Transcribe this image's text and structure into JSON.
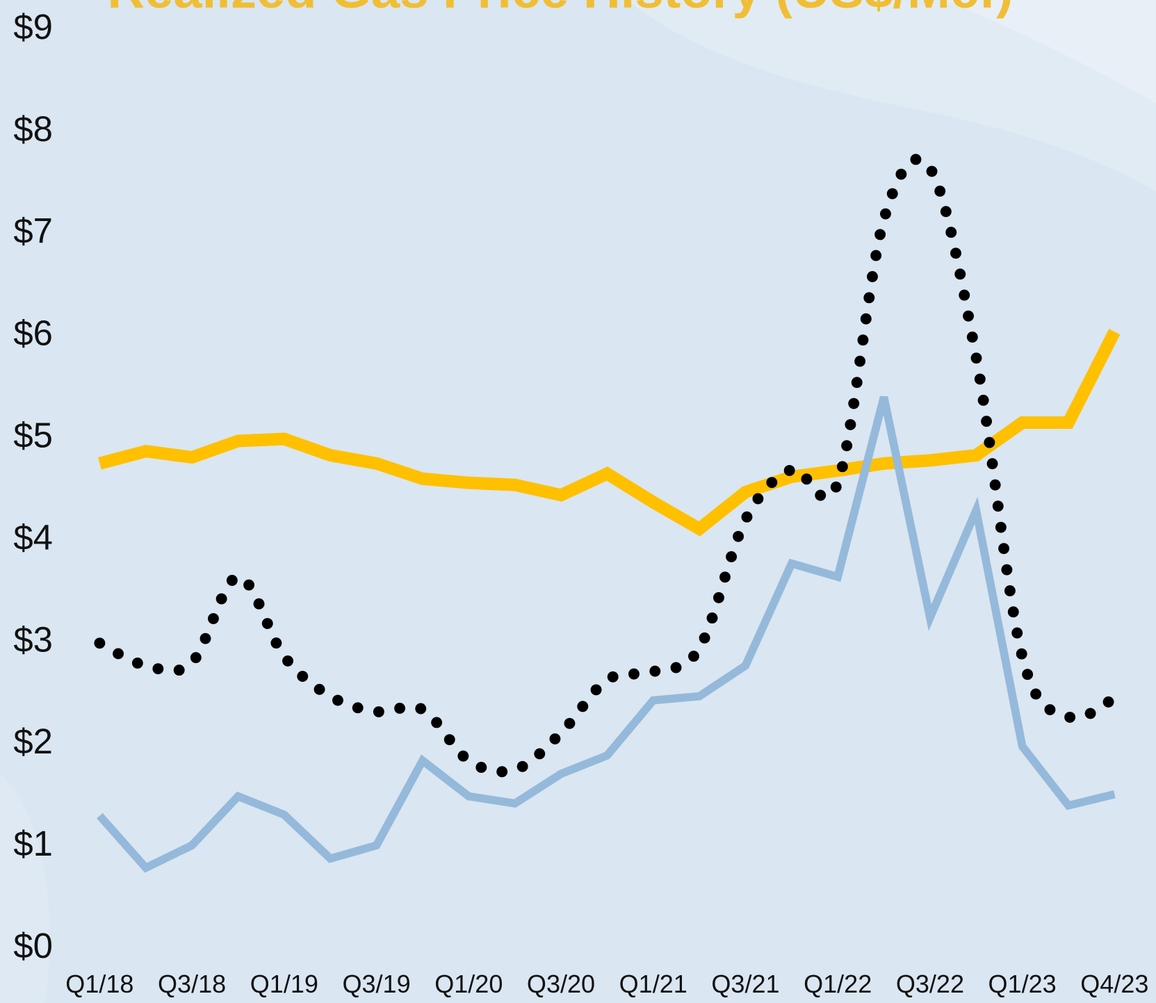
{
  "chart_data": {
    "type": "line",
    "title": "Realized Gas Price History (US$/Mcf)",
    "categories": [
      "Q1/18",
      null,
      "Q3/18",
      null,
      "Q1/19",
      null,
      "Q3/19",
      null,
      "Q1/20",
      null,
      "Q3/20",
      null,
      "Q1/21",
      null,
      "Q3/21",
      null,
      "Q1/22",
      null,
      "Q3/22",
      null,
      "Q1/23",
      null,
      "Q4/23"
    ],
    "ylim": [
      0,
      9
    ],
    "yticks": [
      {
        "value": 0,
        "label": "$0"
      },
      {
        "value": 1,
        "label": "$1"
      },
      {
        "value": 2,
        "label": "$2"
      },
      {
        "value": 3,
        "label": "$3"
      },
      {
        "value": 4,
        "label": "$4"
      },
      {
        "value": 5,
        "label": "$5"
      },
      {
        "value": 6,
        "label": "$6"
      },
      {
        "value": 7,
        "label": "$7"
      },
      {
        "value": 8,
        "label": "$8"
      },
      {
        "value": 9,
        "label": "$9"
      }
    ],
    "grid": false,
    "series": [
      {
        "color": "#ffc000",
        "style": "solid",
        "values": [
          4.75,
          4.87,
          4.81,
          4.97,
          4.99,
          4.83,
          4.75,
          4.6,
          4.56,
          4.54,
          4.44,
          4.65,
          4.37,
          4.11,
          4.47,
          4.62,
          4.68,
          4.75,
          4.78,
          4.83,
          5.15,
          5.15,
          6.04
        ]
      },
      {
        "color": "#95b9da",
        "style": "solid",
        "values": [
          1.3,
          0.79,
          1.01,
          1.49,
          1.31,
          0.88,
          1.01,
          1.84,
          1.49,
          1.42,
          1.71,
          1.89,
          2.43,
          2.47,
          2.77,
          3.77,
          3.64,
          5.4,
          3.24,
          4.29,
          1.98,
          1.4,
          1.51
        ]
      },
      {
        "color": "#000000",
        "style": "dotted",
        "values": [
          2.99,
          2.77,
          2.8,
          3.64,
          2.86,
          2.47,
          2.32,
          2.34,
          1.84,
          1.75,
          2.11,
          2.63,
          2.71,
          2.94,
          4.2,
          4.69,
          4.56,
          7.14,
          7.64,
          5.79,
          2.86,
          2.27,
          2.45
        ]
      }
    ]
  }
}
